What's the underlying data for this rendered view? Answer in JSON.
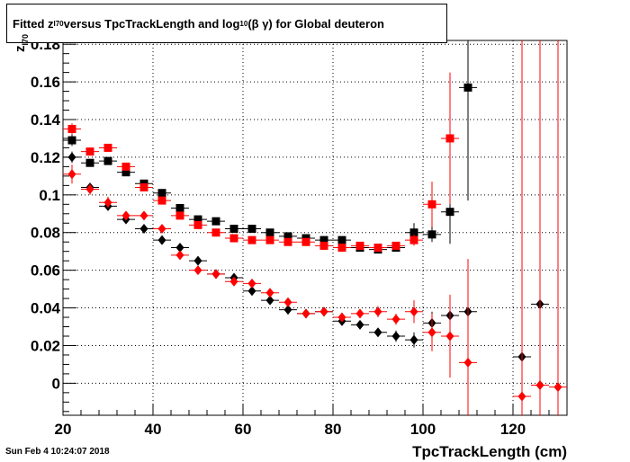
{
  "chart_data": {
    "type": "scatter",
    "title": {
      "part1": "Fitted  z",
      "sub1": "I70",
      "part2": "  versus TpcTrackLength and log",
      "sub2": "10",
      "part3": " (β γ) for Global deuteron"
    },
    "xlabel": "TpcTrackLength (cm)",
    "ylabel": {
      "main": "z",
      "sub": "I70"
    },
    "xlim": [
      20,
      132
    ],
    "ylim": [
      -0.017,
      0.182
    ],
    "xticks": [
      20,
      40,
      60,
      80,
      100,
      120
    ],
    "yticks": [
      0,
      0.02,
      0.04,
      0.06,
      0.08,
      0.1,
      0.12,
      0.14,
      0.16,
      0.18
    ],
    "ytick_labels": [
      "0",
      "0.02",
      "0.04",
      "0.06",
      "0.08",
      "0.1",
      "0.12",
      "0.14",
      "0.16",
      "0.18"
    ],
    "grid": true,
    "timestamp": "Sun Feb  4 10:24:07 2018",
    "series": [
      {
        "marker": "square",
        "color": "#000000",
        "points": [
          [
            22,
            0.129,
            0.003
          ],
          [
            26,
            0.117,
            0.002
          ],
          [
            30,
            0.118,
            0.002
          ],
          [
            34,
            0.112,
            0.002
          ],
          [
            38,
            0.106,
            0.002
          ],
          [
            42,
            0.101,
            0.002
          ],
          [
            46,
            0.093,
            0.002
          ],
          [
            50,
            0.087,
            0.002
          ],
          [
            54,
            0.086,
            0.002
          ],
          [
            58,
            0.082,
            0.002
          ],
          [
            62,
            0.082,
            0.002
          ],
          [
            66,
            0.08,
            0.002
          ],
          [
            70,
            0.078,
            0.002
          ],
          [
            74,
            0.077,
            0.002
          ],
          [
            78,
            0.076,
            0.002
          ],
          [
            82,
            0.076,
            0.002
          ],
          [
            86,
            0.072,
            0.002
          ],
          [
            90,
            0.071,
            0.002
          ],
          [
            94,
            0.072,
            0.002
          ],
          [
            98,
            0.08,
            0.005
          ],
          [
            102,
            0.079,
            0.004
          ],
          [
            106,
            0.091,
            0.017
          ],
          [
            110,
            0.157,
            0.06
          ]
        ]
      },
      {
        "marker": "square",
        "color": "#ff0000",
        "points": [
          [
            22,
            0.135,
            0.003
          ],
          [
            26,
            0.123,
            0.002
          ],
          [
            30,
            0.125,
            0.002
          ],
          [
            34,
            0.115,
            0.002
          ],
          [
            38,
            0.104,
            0.002
          ],
          [
            42,
            0.097,
            0.002
          ],
          [
            46,
            0.089,
            0.002
          ],
          [
            50,
            0.084,
            0.002
          ],
          [
            54,
            0.08,
            0.002
          ],
          [
            58,
            0.077,
            0.002
          ],
          [
            62,
            0.076,
            0.002
          ],
          [
            66,
            0.076,
            0.002
          ],
          [
            70,
            0.075,
            0.002
          ],
          [
            74,
            0.075,
            0.002
          ],
          [
            78,
            0.073,
            0.002
          ],
          [
            82,
            0.072,
            0.002
          ],
          [
            86,
            0.073,
            0.002
          ],
          [
            90,
            0.072,
            0.002
          ],
          [
            94,
            0.073,
            0.002
          ],
          [
            98,
            0.076,
            0.003
          ],
          [
            102,
            0.095,
            0.012
          ],
          [
            106,
            0.13,
            0.035
          ]
        ]
      },
      {
        "marker": "diamond",
        "color": "#000000",
        "points": [
          [
            22,
            0.12,
            0.003
          ],
          [
            26,
            0.104,
            0.002
          ],
          [
            30,
            0.094,
            0.002
          ],
          [
            34,
            0.087,
            0.002
          ],
          [
            38,
            0.082,
            0.002
          ],
          [
            42,
            0.076,
            0.002
          ],
          [
            46,
            0.072,
            0.002
          ],
          [
            50,
            0.065,
            0.002
          ],
          [
            54,
            0.058,
            0.002
          ],
          [
            58,
            0.056,
            0.002
          ],
          [
            62,
            0.049,
            0.002
          ],
          [
            66,
            0.044,
            0.002
          ],
          [
            70,
            0.039,
            0.002
          ],
          [
            74,
            0.037,
            0.002
          ],
          [
            78,
            0.038,
            0.002
          ],
          [
            82,
            0.033,
            0.002
          ],
          [
            86,
            0.031,
            0.002
          ],
          [
            90,
            0.027,
            0.002
          ],
          [
            94,
            0.025,
            0.003
          ],
          [
            98,
            0.023,
            0.004
          ],
          [
            102,
            0.032,
            0.006
          ],
          [
            106,
            0.036,
            0.009
          ],
          [
            110,
            0.038,
            0.012
          ],
          [
            122,
            0.014,
            0.03
          ],
          [
            126,
            0.042,
            0.04
          ]
        ]
      },
      {
        "marker": "diamond",
        "color": "#ff0000",
        "points": [
          [
            22,
            0.111,
            0.005
          ],
          [
            26,
            0.103,
            0.003
          ],
          [
            30,
            0.096,
            0.003
          ],
          [
            34,
            0.089,
            0.002
          ],
          [
            38,
            0.089,
            0.002
          ],
          [
            42,
            0.082,
            0.002
          ],
          [
            46,
            0.068,
            0.002
          ],
          [
            50,
            0.06,
            0.002
          ],
          [
            54,
            0.058,
            0.002
          ],
          [
            58,
            0.054,
            0.002
          ],
          [
            62,
            0.053,
            0.002
          ],
          [
            66,
            0.048,
            0.002
          ],
          [
            70,
            0.043,
            0.002
          ],
          [
            74,
            0.037,
            0.002
          ],
          [
            78,
            0.038,
            0.002
          ],
          [
            82,
            0.035,
            0.002
          ],
          [
            86,
            0.037,
            0.002
          ],
          [
            90,
            0.038,
            0.003
          ],
          [
            94,
            0.034,
            0.003
          ],
          [
            98,
            0.038,
            0.006
          ],
          [
            102,
            0.027,
            0.01
          ],
          [
            106,
            0.025,
            0.022
          ],
          [
            110,
            0.011,
            0.055
          ],
          [
            122,
            -0.007,
            0.19
          ],
          [
            126,
            -0.001,
            0.19
          ],
          [
            130,
            -0.002,
            0.19
          ]
        ]
      }
    ]
  }
}
